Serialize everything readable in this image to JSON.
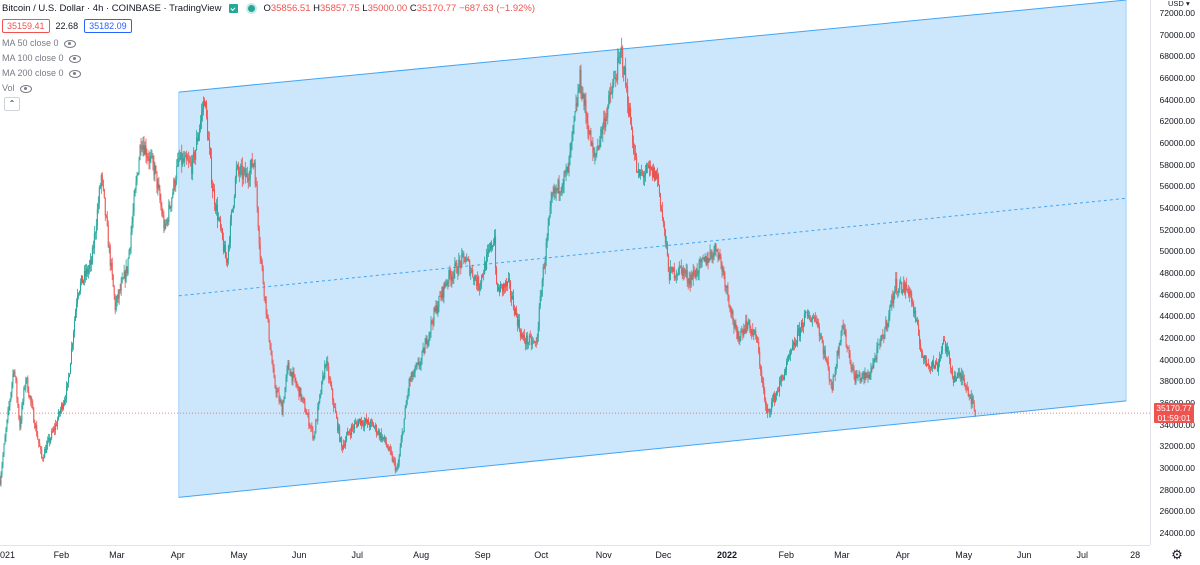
{
  "legend": {
    "title": "Bitcoin / U.S. Dollar · 4h · COINBASE · TradingView",
    "ohlc": {
      "o_label": "O",
      "o": "35856.51",
      "h_label": "H",
      "h": "35857.75",
      "l_label": "L",
      "l": "35000.00",
      "c_label": "C",
      "c": "35170.77",
      "change": "−687.63 (−1.92%)"
    },
    "bid": "35159.41",
    "spread": "22.68",
    "ask": "35182.09",
    "indicators": [
      "MA 50 close 0",
      "MA 100 close 0",
      "MA 200 close 0",
      "Vol"
    ],
    "collapse_glyph": "⌃"
  },
  "price_axis": {
    "currency": "USD",
    "currency_glyph": "▾",
    "labels": [
      "72000.00",
      "70000.00",
      "68000.00",
      "66000.00",
      "64000.00",
      "62000.00",
      "60000.00",
      "58000.00",
      "56000.00",
      "54000.00",
      "52000.00",
      "50000.00",
      "48000.00",
      "46000.00",
      "44000.00",
      "42000.00",
      "40000.00",
      "38000.00",
      "36000.00",
      "34000.00",
      "32000.00",
      "30000.00",
      "28000.00",
      "26000.00",
      "24000.00"
    ],
    "last_price": "35170.77",
    "countdown": "01:59:01"
  },
  "time_axis": {
    "labels": [
      {
        "text": "021",
        "bold": false,
        "at": "2021-01-01"
      },
      {
        "text": "Feb",
        "bold": false,
        "at": "2021-02-01"
      },
      {
        "text": "Mar",
        "bold": false,
        "at": "2021-03-01"
      },
      {
        "text": "Apr",
        "bold": false,
        "at": "2021-04-01"
      },
      {
        "text": "May",
        "bold": false,
        "at": "2021-05-01"
      },
      {
        "text": "Jun",
        "bold": false,
        "at": "2021-06-01"
      },
      {
        "text": "Jul",
        "bold": false,
        "at": "2021-07-01"
      },
      {
        "text": "Aug",
        "bold": false,
        "at": "2021-08-01"
      },
      {
        "text": "Sep",
        "bold": false,
        "at": "2021-09-01"
      },
      {
        "text": "Oct",
        "bold": false,
        "at": "2021-10-01"
      },
      {
        "text": "Nov",
        "bold": false,
        "at": "2021-11-01"
      },
      {
        "text": "Dec",
        "bold": false,
        "at": "2021-12-01"
      },
      {
        "text": "2022",
        "bold": true,
        "at": "2022-01-01"
      },
      {
        "text": "Feb",
        "bold": false,
        "at": "2022-02-01"
      },
      {
        "text": "Mar",
        "bold": false,
        "at": "2022-03-01"
      },
      {
        "text": "Apr",
        "bold": false,
        "at": "2022-04-01"
      },
      {
        "text": "May",
        "bold": false,
        "at": "2022-05-01"
      },
      {
        "text": "Jun",
        "bold": false,
        "at": "2022-06-01"
      },
      {
        "text": "Jul",
        "bold": false,
        "at": "2022-07-01"
      },
      {
        "text": "28",
        "bold": false,
        "at": "2022-07-28"
      }
    ]
  },
  "colors": {
    "up": "#26a69a",
    "down": "#ef5350",
    "channel_fill": "#bbdefb",
    "channel_line": "#42a5f5",
    "price_line": "#ef5350"
  },
  "chart_data": {
    "type": "candlestick",
    "interval": "4h",
    "last_close": 35170.77,
    "price_path": [
      [
        "2021-01-01",
        29000
      ],
      [
        "2021-01-08",
        39500
      ],
      [
        "2021-01-11",
        34000
      ],
      [
        "2021-01-14",
        38500
      ],
      [
        "2021-01-22",
        31000
      ],
      [
        "2021-01-29",
        34000
      ],
      [
        "2021-02-04",
        37500
      ],
      [
        "2021-02-09",
        46500
      ],
      [
        "2021-02-16",
        49000
      ],
      [
        "2021-02-21",
        57000
      ],
      [
        "2021-02-28",
        45000
      ],
      [
        "2021-03-06",
        48500
      ],
      [
        "2021-03-13",
        60500
      ],
      [
        "2021-03-20",
        57500
      ],
      [
        "2021-03-25",
        52000
      ],
      [
        "2021-04-01",
        58500
      ],
      [
        "2021-04-08",
        58000
      ],
      [
        "2021-04-14",
        64300
      ],
      [
        "2021-04-18",
        56000
      ],
      [
        "2021-04-25",
        49000
      ],
      [
        "2021-04-30",
        57500
      ],
      [
        "2021-05-05",
        57000
      ],
      [
        "2021-05-09",
        58500
      ],
      [
        "2021-05-12",
        50000
      ],
      [
        "2021-05-19",
        38000
      ],
      [
        "2021-05-23",
        35500
      ],
      [
        "2021-05-26",
        39500
      ],
      [
        "2021-06-01",
        37000
      ],
      [
        "2021-06-08",
        33000
      ],
      [
        "2021-06-14",
        40000
      ],
      [
        "2021-06-22",
        32000
      ],
      [
        "2021-06-26",
        33500
      ],
      [
        "2021-07-01",
        34500
      ],
      [
        "2021-07-08",
        34000
      ],
      [
        "2021-07-14",
        32500
      ],
      [
        "2021-07-20",
        29800
      ],
      [
        "2021-07-26",
        38000
      ],
      [
        "2021-08-01",
        40000
      ],
      [
        "2021-08-07",
        44000
      ],
      [
        "2021-08-14",
        47500
      ],
      [
        "2021-08-23",
        49500
      ],
      [
        "2021-08-30",
        47000
      ],
      [
        "2021-09-07",
        51500
      ],
      [
        "2021-09-08",
        46500
      ],
      [
        "2021-09-14",
        47000
      ],
      [
        "2021-09-21",
        42000
      ],
      [
        "2021-09-28",
        41500
      ],
      [
        "2021-10-01",
        47500
      ],
      [
        "2021-10-06",
        55000
      ],
      [
        "2021-10-14",
        57500
      ],
      [
        "2021-10-20",
        66000
      ],
      [
        "2021-10-27",
        58500
      ],
      [
        "2021-11-01",
        62000
      ],
      [
        "2021-11-10",
        68500
      ],
      [
        "2021-11-18",
        57000
      ],
      [
        "2021-11-24",
        57500
      ],
      [
        "2021-11-28",
        57000
      ],
      [
        "2021-12-04",
        48000
      ],
      [
        "2021-12-10",
        48500
      ],
      [
        "2021-12-14",
        47500
      ],
      [
        "2021-12-21",
        49000
      ],
      [
        "2021-12-28",
        50500
      ],
      [
        "2022-01-01",
        47500
      ],
      [
        "2022-01-07",
        42000
      ],
      [
        "2022-01-12",
        43500
      ],
      [
        "2022-01-17",
        42000
      ],
      [
        "2022-01-22",
        35000
      ],
      [
        "2022-01-28",
        37500
      ],
      [
        "2022-02-04",
        41000
      ],
      [
        "2022-02-10",
        44000
      ],
      [
        "2022-02-16",
        44000
      ],
      [
        "2022-02-24",
        37500
      ],
      [
        "2022-03-01",
        43500
      ],
      [
        "2022-03-07",
        38500
      ],
      [
        "2022-03-14",
        38500
      ],
      [
        "2022-03-22",
        42500
      ],
      [
        "2022-03-28",
        47000
      ],
      [
        "2022-04-04",
        46500
      ],
      [
        "2022-04-11",
        40000
      ],
      [
        "2022-04-18",
        39500
      ],
      [
        "2022-04-21",
        42000
      ],
      [
        "2022-04-26",
        38500
      ],
      [
        "2022-05-01",
        38500
      ],
      [
        "2022-05-05",
        36500
      ],
      [
        "2022-05-07",
        35170
      ]
    ],
    "regression_channel": {
      "start": "2021-04-01",
      "end": "2022-07-22",
      "upper": [
        64800,
        73300
      ],
      "middle": [
        46000,
        55000
      ],
      "lower": [
        27400,
        36300
      ]
    },
    "y_axis_range": [
      23000,
      73300
    ],
    "x_axis_range": [
      "2021-01-01",
      "2022-08-03"
    ]
  }
}
